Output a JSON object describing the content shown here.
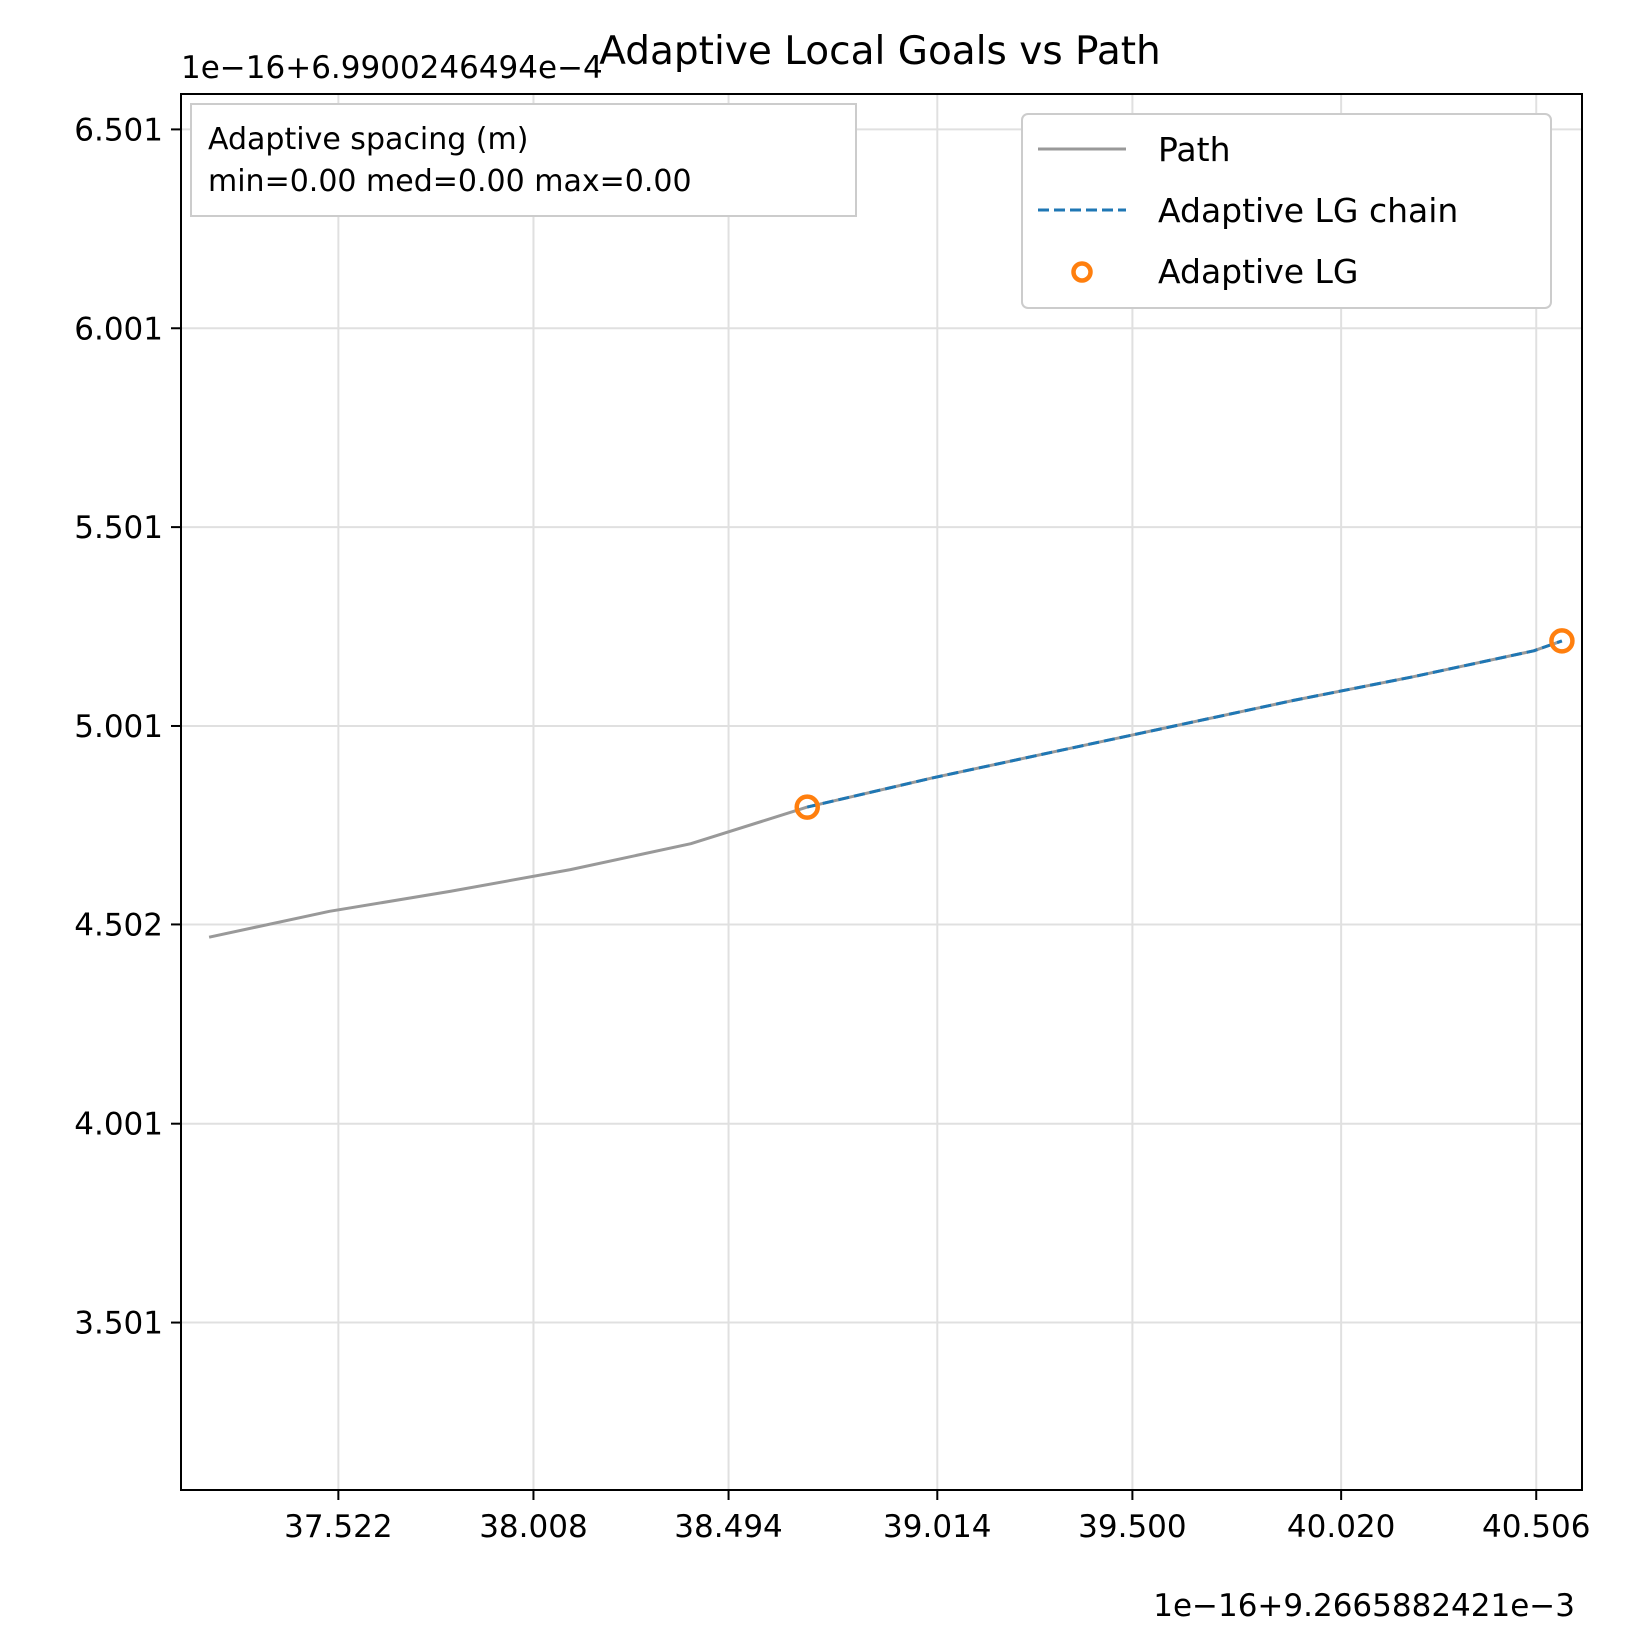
{
  "chart_data": {
    "type": "line",
    "title": "Adaptive Local Goals vs Path",
    "xlabel": "",
    "ylabel": "",
    "x_offset_label": "1e−16+9.2665882421e−3",
    "y_offset_label": "1e−16+6.9900246494e−4",
    "xlim": [
      37.13,
      40.62
    ],
    "ylim": [
      3.08,
      6.59
    ],
    "x_ticks": [
      37.522,
      38.008,
      38.494,
      39.014,
      39.5,
      40.02,
      40.506
    ],
    "x_tick_labels": [
      "37.522",
      "38.008",
      "38.494",
      "39.014",
      "39.500",
      "40.020",
      "40.506"
    ],
    "y_ticks": [
      3.501,
      4.001,
      4.502,
      5.001,
      5.501,
      6.001,
      6.501
    ],
    "y_tick_labels": [
      "3.501",
      "4.001",
      "4.502",
      "5.001",
      "5.501",
      "6.001",
      "6.501"
    ],
    "grid": true,
    "legend_position": "top-right",
    "series": [
      {
        "name": "Path",
        "style": "solid",
        "color": "#999999",
        "points": [
          [
            37.2,
            4.47
          ],
          [
            37.5,
            4.535
          ],
          [
            37.8,
            4.585
          ],
          [
            38.1,
            4.64
          ],
          [
            38.4,
            4.705
          ],
          [
            38.69,
            4.797
          ],
          [
            39.0,
            4.87
          ],
          [
            39.3,
            4.935
          ],
          [
            39.6,
            5.0
          ],
          [
            39.9,
            5.065
          ],
          [
            40.2,
            5.125
          ],
          [
            40.5,
            5.19
          ],
          [
            40.57,
            5.215
          ]
        ]
      },
      {
        "name": "Adaptive LG chain",
        "style": "dashed",
        "color": "#1f77b4",
        "points": [
          [
            38.69,
            4.797
          ],
          [
            39.0,
            4.87
          ],
          [
            39.3,
            4.935
          ],
          [
            39.6,
            5.0
          ],
          [
            39.9,
            5.065
          ],
          [
            40.2,
            5.125
          ],
          [
            40.5,
            5.19
          ],
          [
            40.57,
            5.215
          ]
        ]
      },
      {
        "name": "Adaptive LG",
        "style": "marker",
        "color": "#ff7f0e",
        "points": [
          [
            38.69,
            4.797
          ],
          [
            40.57,
            5.215
          ]
        ]
      }
    ],
    "annotation": {
      "heading": "Adaptive spacing (m)",
      "stats": "min=0.00  med=0.00  max=0.00"
    }
  },
  "legend": {
    "path": "Path",
    "chain": "Adaptive LG chain",
    "lg": "Adaptive LG"
  },
  "colors": {
    "path": "#999999",
    "chain": "#1f77b4",
    "lg": "#ff7f0e",
    "grid": "#e0e0e0"
  }
}
